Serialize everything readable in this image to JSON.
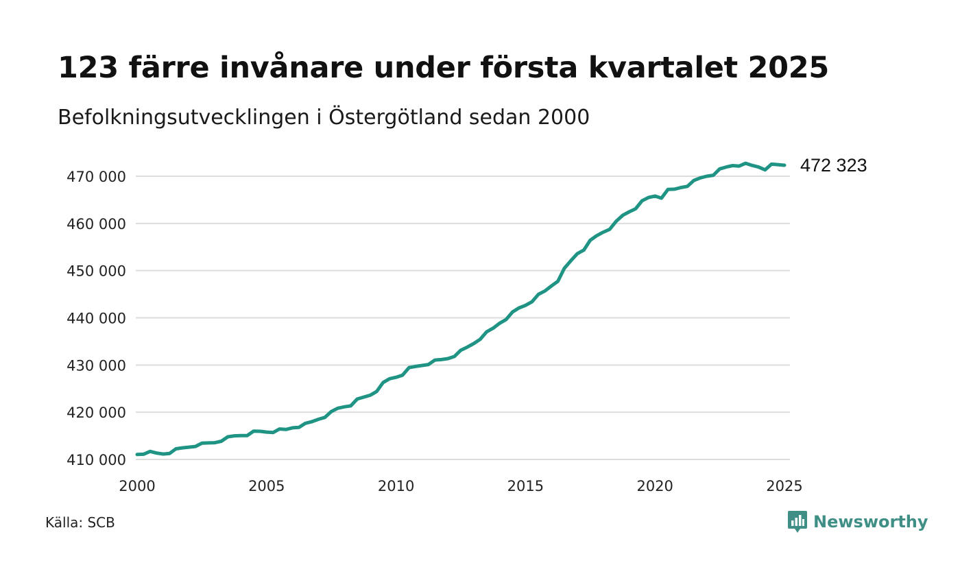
{
  "header": {
    "title": "123 färre invånare under första kvartalet 2025",
    "subtitle": "Befolkningsutvecklingen i Östergötland sedan 2000"
  },
  "footer": {
    "source": "Källa: SCB",
    "brand": "Newsworthy",
    "brand_icon": "bar-chart-icon"
  },
  "colors": {
    "line": "#1f9384",
    "grid": "#dddddd",
    "brand": "#3f8f87"
  },
  "chart_data": {
    "type": "line",
    "title": "123 färre invånare under första kvartalet 2025",
    "subtitle": "Befolkningsutvecklingen i Östergötland sedan 2000",
    "xlabel": "",
    "ylabel": "",
    "xlim": [
      2000,
      2025
    ],
    "ylim": [
      410000,
      472000
    ],
    "x_ticks": [
      2000,
      2005,
      2010,
      2015,
      2020,
      2025
    ],
    "x_tick_labels": [
      "2000",
      "2005",
      "2010",
      "2015",
      "2020",
      "2025"
    ],
    "y_ticks": [
      410000,
      420000,
      430000,
      440000,
      450000,
      460000,
      470000
    ],
    "y_tick_labels": [
      "410 000",
      "420 000",
      "430 000",
      "440 000",
      "450 000",
      "460 000",
      "470 000"
    ],
    "grid": "horizontal",
    "end_label": "472 323",
    "series": [
      {
        "x": [
          "2000 Q1",
          "2000 Q2",
          "2000 Q3",
          "2000 Q4",
          "2001 Q1",
          "2001 Q2",
          "2001 Q3",
          "2001 Q4",
          "2002 Q1",
          "2002 Q2",
          "2002 Q3",
          "2002 Q4",
          "2003 Q1",
          "2003 Q2",
          "2003 Q3",
          "2003 Q4",
          "2004 Q1",
          "2004 Q2",
          "2004 Q3",
          "2004 Q4",
          "2005 Q1",
          "2005 Q2",
          "2005 Q3",
          "2005 Q4",
          "2006 Q1",
          "2006 Q2",
          "2006 Q3",
          "2006 Q4",
          "2007 Q1",
          "2007 Q2",
          "2007 Q3",
          "2007 Q4",
          "2008 Q1",
          "2008 Q2",
          "2008 Q3",
          "2008 Q4",
          "2009 Q1",
          "2009 Q2",
          "2009 Q3",
          "2009 Q4",
          "2010 Q1",
          "2010 Q2",
          "2010 Q3",
          "2010 Q4",
          "2011 Q1",
          "2011 Q2",
          "2011 Q3",
          "2011 Q4",
          "2012 Q1",
          "2012 Q2",
          "2012 Q3",
          "2012 Q4",
          "2013 Q1",
          "2013 Q2",
          "2013 Q3",
          "2013 Q4",
          "2014 Q1",
          "2014 Q2",
          "2014 Q3",
          "2014 Q4",
          "2015 Q1",
          "2015 Q2",
          "2015 Q3",
          "2015 Q4",
          "2016 Q1",
          "2016 Q2",
          "2016 Q3",
          "2016 Q4",
          "2017 Q1",
          "2017 Q2",
          "2017 Q3",
          "2017 Q4",
          "2018 Q1",
          "2018 Q2",
          "2018 Q3",
          "2018 Q4",
          "2019 Q1",
          "2019 Q2",
          "2019 Q3",
          "2019 Q4",
          "2020 Q1",
          "2020 Q2",
          "2020 Q3",
          "2020 Q4",
          "2021 Q1",
          "2021 Q2",
          "2021 Q3",
          "2021 Q4",
          "2022 Q1",
          "2022 Q2",
          "2022 Q3",
          "2022 Q4",
          "2023 Q1",
          "2023 Q2",
          "2023 Q3",
          "2023 Q4",
          "2024 Q1",
          "2024 Q2",
          "2024 Q3",
          "2024 Q4",
          "2025 Q1"
        ],
        "values": [
          411050,
          411100,
          411700,
          411350,
          411150,
          411250,
          412250,
          412450,
          412600,
          412750,
          413450,
          413500,
          413550,
          413850,
          414800,
          415000,
          415050,
          415050,
          416000,
          415950,
          415800,
          415700,
          416450,
          416350,
          416700,
          416800,
          417650,
          418000,
          418500,
          418900,
          420150,
          420850,
          421150,
          421350,
          422800,
          423200,
          423600,
          424400,
          426300,
          427100,
          427400,
          427850,
          429450,
          429700,
          429900,
          430100,
          431050,
          431150,
          431350,
          431800,
          433150,
          433800,
          434550,
          435450,
          437050,
          437800,
          438850,
          439650,
          441250,
          442100,
          442650,
          443400,
          445000,
          445700,
          446750,
          447750,
          450500,
          452100,
          453600,
          454350,
          456450,
          457400,
          458150,
          458750,
          460450,
          461700,
          462450,
          463100,
          464800,
          465500,
          465800,
          465350,
          467200,
          467250,
          467600,
          467850,
          469100,
          469650,
          470000,
          470200,
          471550,
          471950,
          472250,
          472150,
          472750,
          472300,
          471950,
          471350,
          472550,
          472450,
          472323
        ]
      }
    ]
  }
}
